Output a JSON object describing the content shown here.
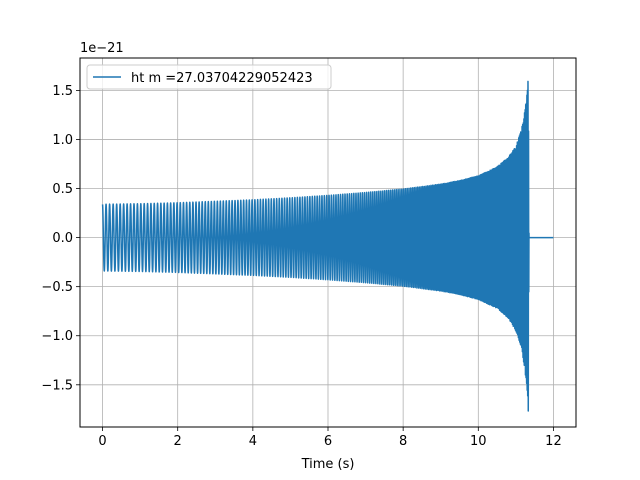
{
  "chart_data": {
    "type": "line",
    "title": "",
    "xlabel": "Time (s)",
    "ylabel": "",
    "y_offset_text": "1e−21",
    "xlim": [
      -0.6,
      12.6
    ],
    "ylim": [
      -1.93,
      1.83
    ],
    "x_ticks": [
      0,
      2,
      4,
      6,
      8,
      10,
      12
    ],
    "x_tick_labels": [
      "0",
      "2",
      "4",
      "6",
      "8",
      "10",
      "12"
    ],
    "y_ticks": [
      -1.5,
      -1.0,
      -0.5,
      0.0,
      0.5,
      1.0,
      1.5
    ],
    "y_tick_labels": [
      "−1.5",
      "−1.0",
      "−0.5",
      "0.0",
      "0.5",
      "1.0",
      "1.5"
    ],
    "grid": true,
    "legend_position": "top-left",
    "series": [
      {
        "name": "ht m =27.03704229052423",
        "color": "#1f77b4",
        "envelope": {
          "t": [
            0.0,
            1.0,
            2.0,
            3.0,
            4.0,
            5.0,
            6.0,
            7.0,
            8.0,
            9.0,
            9.5,
            10.0,
            10.5,
            10.8,
            11.0,
            11.15,
            11.25,
            11.3,
            11.33,
            11.35,
            11.45,
            12.0
          ],
          "upper": [
            0.34,
            0.345,
            0.355,
            0.37,
            0.385,
            0.405,
            0.43,
            0.46,
            0.495,
            0.545,
            0.58,
            0.63,
            0.72,
            0.82,
            0.93,
            1.1,
            1.32,
            1.52,
            1.67,
            0.0,
            0.0,
            0.0
          ],
          "lower": [
            -0.34,
            -0.345,
            -0.355,
            -0.37,
            -0.385,
            -0.405,
            -0.43,
            -0.46,
            -0.495,
            -0.545,
            -0.58,
            -0.63,
            -0.72,
            -0.82,
            -0.95,
            -1.12,
            -1.38,
            -1.6,
            -1.78,
            0.0,
            0.0,
            0.0
          ]
        }
      }
    ]
  }
}
